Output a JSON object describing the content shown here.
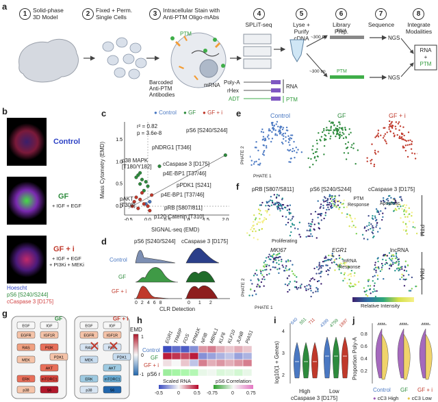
{
  "panel_letters": {
    "a": "a",
    "b": "b",
    "c": "c",
    "d": "d",
    "e": "e",
    "f": "f",
    "g": "g",
    "h": "h",
    "i": "i",
    "j": "j"
  },
  "workflow": {
    "steps": [
      {
        "num": "1",
        "label": "Solid-phase\n3D Model"
      },
      {
        "num": "2",
        "label": "Fixed + Perm.\nSingle Cells"
      },
      {
        "num": "3",
        "label": "Intracellular Stain with\nAnti-PTM Oligo-mAbs"
      },
      {
        "num": "4",
        "label": "SPLiT-seq"
      },
      {
        "num": "5",
        "label": "Lyse +\nPurify\ncDNA"
      },
      {
        "num": "6",
        "label": "Library\nPrep."
      },
      {
        "num": "7",
        "label": "Sequence"
      },
      {
        "num": "8",
        "label": "Integrate\nModalities"
      }
    ],
    "ptm_label": "PTM",
    "barcoded_label": "Barcoded\nAnti-PTM\nAntibodies",
    "mrna_label": "mRNA",
    "polya": "Poly-A",
    "rhex": "rHex",
    "adt": "ADT",
    "rna_bracket": "RNA",
    "ptm_bracket": "PTM",
    "bp300a": "~300 bp",
    "bp300b": "~300 bp",
    "ngs1": "NGS",
    "ngs2": "NGS",
    "lib_rna": "RNA",
    "lib_ptm": "PTM",
    "final_rna": "RNA",
    "final_plus": "+",
    "final_ptm": "PTM"
  },
  "panel_b": {
    "conditions": [
      {
        "name": "Control",
        "sub": ""
      },
      {
        "name": "GF",
        "sub": "+ IGF + EGF"
      },
      {
        "name": "GF + i",
        "sub": "+ IGF + EGF\n+ PI3Ki + MEKi"
      }
    ],
    "legend": [
      "Hoescht",
      "pS6 [S240/S244]",
      "cCaspase 3 [D175]"
    ]
  },
  "panel_c": {
    "legend": [
      "Control",
      "GF",
      "GF + i"
    ],
    "legend_colors": [
      "#4a78c2",
      "#2e8b3d",
      "#c0392b"
    ],
    "stats": [
      "r² = 0.82",
      "p = 3.6e-8"
    ],
    "xlabel": "SIGNAL-seq (EMD)",
    "ylabel": "Mass Cytometry (EMD)",
    "xticks": [
      "-0.5",
      "0.0",
      "0.5",
      "1.0",
      "1.5",
      "2.0"
    ],
    "yticks": [
      "0.0",
      "0.5",
      "1.0",
      "1.5"
    ],
    "annotations": [
      "pS6 [S240/S244]",
      "pNDRG1 [T346]",
      "cCaspase 3 [D175]",
      "p38 MAPK\n[T180/Y182]",
      "p4E-BP1 [T37/46]",
      "pPDK1 [S241]",
      "p4E-BP1 [T37/46]",
      "pAKT\n[T308]",
      "pRB [S807/811]",
      "p120-Catenin [T310]"
    ]
  },
  "panel_d": {
    "titles": [
      "pS6 [S240/S244]",
      "cCaspase 3 [D175]"
    ],
    "rows": [
      "Control",
      "GF",
      "GF + i"
    ],
    "xlabel": "CLR Detection",
    "xticks_left": [
      "0",
      "2",
      "4",
      "6",
      "8"
    ],
    "xticks_right": [
      "0",
      "1",
      "2"
    ]
  },
  "panel_e": {
    "titles": [
      "Control",
      "GF",
      "GF + i"
    ],
    "axis1": "PHATE 1",
    "axis2": "PHATE 2"
  },
  "panel_f": {
    "ptm_titles": [
      "pRB [S807/S811]",
      "pS6 [S240/S244]",
      "cCaspase 3 [D175]"
    ],
    "rna_titles": [
      "MKI67",
      "EGR1",
      "lncRNA"
    ],
    "annot": [
      "Proliferating",
      "PTM\nResponse",
      "Apoptotic",
      "mRNA\nResponse"
    ],
    "side": [
      "PTM",
      "RNA"
    ],
    "axis1": "PHATE 1",
    "axis2": "PHATE 2",
    "colorbar": "Relative Intensity"
  },
  "panel_g": {
    "left_title": "GF",
    "right_title": "GF + i",
    "emd_label": "EMD",
    "emd_ticks": [
      "1",
      "0",
      "-1"
    ],
    "nodes": [
      "EGF",
      "IGF",
      "EGFR",
      "IGF1R",
      "RAS",
      "PI3K",
      "PDK1",
      "MEK",
      "AKT",
      "mTORC1",
      "ERK",
      "S6",
      "p38"
    ]
  },
  "panel_h": {
    "genes": [
      "EGR1",
      "TPARP",
      "FOS",
      "PPM1K",
      "NFIB",
      "MBNL1",
      "KLF6",
      "KLF10",
      "JUNB",
      "PIAS1"
    ],
    "rows": [
      "Control",
      "GF",
      "GF + i",
      "pS6 r"
    ],
    "scaled_rna": "Scaled RNA",
    "ps6_corr": "pS6 Correlation",
    "scale_ticks_a": [
      "-0.5",
      "0",
      "0.5"
    ],
    "scale_ticks_b": [
      "-0.75",
      "0",
      "0.75"
    ]
  },
  "panel_i": {
    "ylabel": "log10(1 + Genes)",
    "group_labels": [
      "High",
      "Low"
    ],
    "xlabel": "cCaspase 3 [D175]",
    "counts": [
      "640",
      "551",
      "711",
      "4399",
      "4759",
      "1897"
    ],
    "yticks": [
      "2",
      "3",
      "4"
    ]
  },
  "panel_j": {
    "ylabel": "Proportion Poly-A",
    "groups": [
      "Control",
      "GF",
      "GF + i"
    ],
    "sig": [
      "****",
      "****",
      "****"
    ],
    "legend": [
      "cC3 High",
      "cC3 Low"
    ],
    "yticks": [
      "0.2",
      "0.4",
      "0.6",
      "0.8"
    ]
  },
  "chart_data": [
    {
      "type": "scatter",
      "title": "",
      "xlabel": "SIGNAL-seq (EMD)",
      "ylabel": "Mass Cytometry (EMD)",
      "xlim": [
        -0.6,
        2.1
      ],
      "ylim": [
        -0.2,
        1.9
      ],
      "series": [
        {
          "name": "Control",
          "color": "#4a78c2",
          "x": [
            -0.05,
            0.05
          ],
          "y": [
            0.05,
            0.1
          ]
        },
        {
          "name": "GF",
          "color": "#2e8b3d",
          "x": [
            2.0,
            0.3,
            -0.2,
            -0.25,
            -0.15,
            -0.05,
            0.0,
            -0.1,
            -0.2,
            -0.3
          ],
          "y": [
            1.15,
            0.9,
            0.75,
            0.7,
            0.6,
            0.55,
            0.45,
            0.35,
            0.5,
            0.65
          ]
        },
        {
          "name": "GF + i",
          "color": "#c0392b",
          "x": [
            -0.3,
            -0.2,
            -0.1,
            0.0,
            -0.25,
            -0.35,
            0.1,
            -0.15,
            -0.4,
            0.05
          ],
          "y": [
            0.2,
            0.15,
            0.05,
            0.0,
            -0.05,
            0.1,
            0.25,
            0.3,
            0.0,
            -0.1
          ]
        }
      ]
    },
    {
      "type": "heatmap",
      "title": "Panel h",
      "x": [
        "EGR1",
        "TPARP",
        "FOS",
        "PPM1K",
        "NFIB",
        "MBNL1",
        "KLF6",
        "KLF10",
        "JUNB",
        "PIAS1"
      ],
      "y": [
        "Control",
        "GF",
        "GF + i"
      ],
      "values": [
        [
          -1,
          -0.8,
          -0.9,
          -0.6,
          0.4,
          0.5,
          0.3,
          0.2,
          0.3,
          0.2
        ],
        [
          0.9,
          0.8,
          0.7,
          0.9,
          -0.6,
          -0.5,
          -0.4,
          -0.3,
          -0.5,
          -0.4
        ],
        [
          0.1,
          0.0,
          0.2,
          -0.3,
          0.5,
          0.3,
          0.4,
          0.3,
          0.4,
          0.5
        ]
      ],
      "correlation": [
        0.6,
        0.55,
        0.5,
        0.45,
        0.1,
        0.05,
        0.2,
        0.15,
        0.25,
        0.1
      ]
    }
  ]
}
